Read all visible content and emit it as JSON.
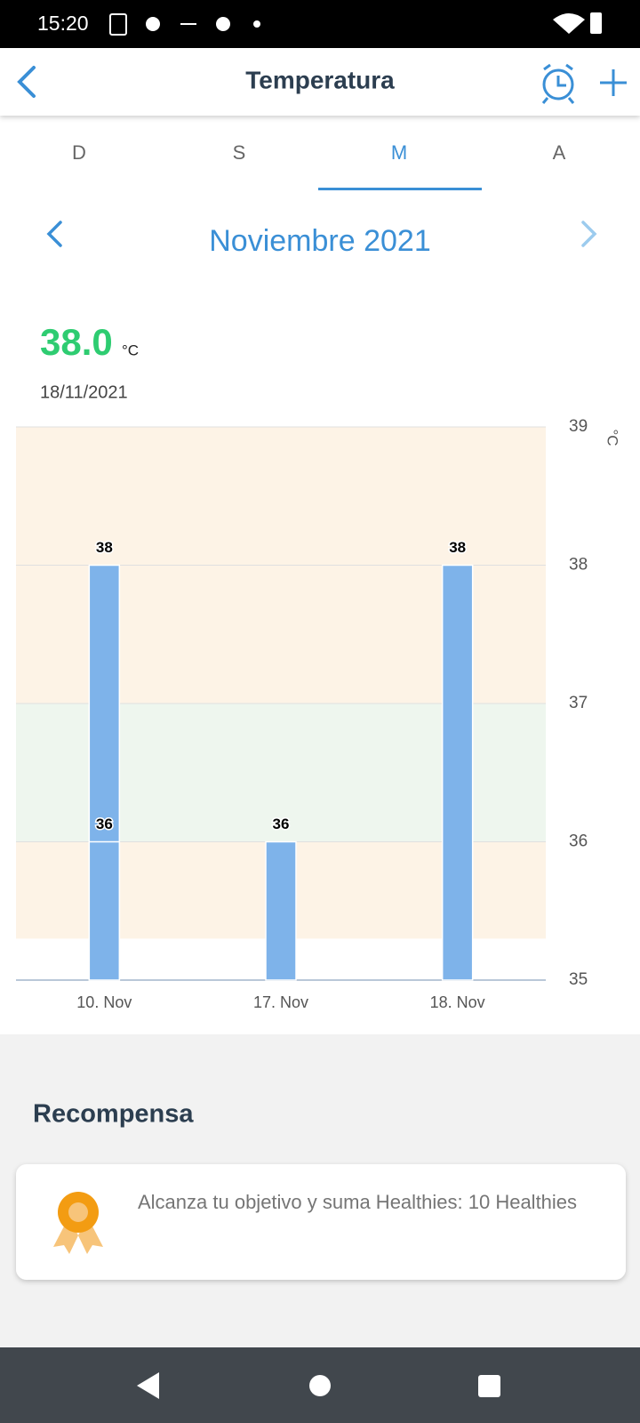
{
  "status_bar": {
    "time": "15:20"
  },
  "header": {
    "title": "Temperatura"
  },
  "tabs": [
    "D",
    "S",
    "M",
    "A"
  ],
  "active_tab": 2,
  "period": "Noviembre 2021",
  "current": {
    "value": "38.0",
    "unit": "°C",
    "date": "18/11/2021"
  },
  "chart_data": {
    "type": "bar",
    "categories": [
      "10. Nov",
      "17. Nov",
      "18. Nov"
    ],
    "series": [
      {
        "color": "#7eb3ea",
        "values": [
          38,
          36,
          38
        ]
      },
      {
        "color": "#7eb3ea",
        "values": [
          36,
          null,
          null
        ]
      }
    ],
    "y_label": "°C",
    "ylim": [
      35,
      39
    ],
    "yticks": [
      35,
      36,
      37,
      38,
      39
    ],
    "grid": true,
    "bands": [
      {
        "from": 35.3,
        "to": 36,
        "color": "#fdf3e6"
      },
      {
        "from": 36,
        "to": 37,
        "color": "#eef6ee"
      },
      {
        "from": 37,
        "to": 39,
        "color": "#fdf3e6"
      }
    ]
  },
  "reward": {
    "title": "Recompensa",
    "text": "Alcanza tu objetivo y suma Healthies: 10 Healthies"
  }
}
